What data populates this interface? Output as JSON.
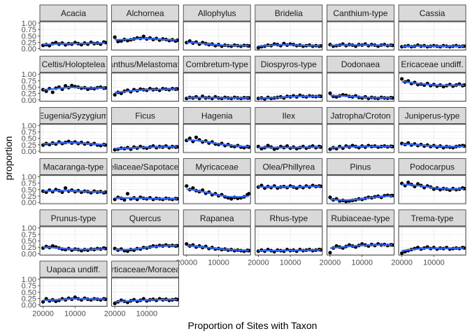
{
  "chart_data": {
    "type": "scatter",
    "facet_layout": "wrap",
    "ncol": 6,
    "xlabel": "Proportion of Sites with Taxon",
    "ylabel": "proportion",
    "x_reversed": true,
    "xlim": [
      21000,
      0
    ],
    "x_ticks": [
      20000,
      10000
    ],
    "x_tick_labels": [
      "20000",
      "10000"
    ],
    "ylim": [
      0,
      1
    ],
    "y_ticks": [
      0,
      0.25,
      0.5,
      0.75,
      1
    ],
    "y_tick_labels": [
      "0.00",
      "0.25",
      "0.50",
      "0.75",
      "1.00"
    ],
    "grid": true,
    "point_color": "#000000",
    "smooth_color": "#3366ff",
    "x": [
      20000,
      19000,
      18000,
      17000,
      16000,
      15000,
      14000,
      13000,
      12000,
      11000,
      10000,
      9000,
      8000,
      7000,
      6000,
      5000,
      4000,
      3000,
      2000,
      1000,
      500
    ],
    "panels": [
      {
        "name": "Acacia",
        "values": [
          0.13,
          0.16,
          0.12,
          0.2,
          0.24,
          0.18,
          0.22,
          0.15,
          0.2,
          0.18,
          0.24,
          0.2,
          0.16,
          0.22,
          0.18,
          0.25,
          0.2,
          0.22,
          0.18,
          0.26,
          0.24
        ]
      },
      {
        "name": "Alchornea",
        "values": [
          0.45,
          0.28,
          0.3,
          0.36,
          0.32,
          0.35,
          0.38,
          0.42,
          0.4,
          0.48,
          0.38,
          0.42,
          0.36,
          0.4,
          0.34,
          0.38,
          0.36,
          0.32,
          0.35,
          0.3,
          0.33
        ]
      },
      {
        "name": "Allophylus",
        "values": [
          0.24,
          0.3,
          0.22,
          0.26,
          0.18,
          0.24,
          0.2,
          0.16,
          0.18,
          0.12,
          0.16,
          0.1,
          0.14,
          0.12,
          0.1,
          0.14,
          0.12,
          0.1,
          0.13,
          0.12,
          0.11
        ]
      },
      {
        "name": "Bridelia",
        "values": [
          0.04,
          0.08,
          0.1,
          0.14,
          0.12,
          0.18,
          0.16,
          0.12,
          0.2,
          0.14,
          0.18,
          0.16,
          0.12,
          0.14,
          0.1,
          0.12,
          0.14,
          0.1,
          0.12,
          0.1,
          0.11
        ]
      },
      {
        "name": "Canthium-type",
        "values": [
          0.16,
          0.1,
          0.12,
          0.14,
          0.18,
          0.12,
          0.16,
          0.14,
          0.1,
          0.16,
          0.14,
          0.18,
          0.12,
          0.16,
          0.14,
          0.1,
          0.14,
          0.16,
          0.12,
          0.14,
          0.13
        ]
      },
      {
        "name": "Cassia",
        "values": [
          0.08,
          0.1,
          0.12,
          0.08,
          0.1,
          0.14,
          0.1,
          0.12,
          0.08,
          0.1,
          0.12,
          0.1,
          0.08,
          0.12,
          0.1,
          0.08,
          0.1,
          0.12,
          0.09,
          0.1,
          0.1
        ]
      },
      {
        "name": "Celtis/Holoptelea",
        "values": [
          0.4,
          0.34,
          0.44,
          0.3,
          0.46,
          0.5,
          0.42,
          0.55,
          0.48,
          0.56,
          0.52,
          0.5,
          0.46,
          0.48,
          0.42,
          0.46,
          0.44,
          0.48,
          0.5,
          0.46,
          0.47
        ]
      },
      {
        "name": "Cleistanthus/Melastomataceae",
        "values": [
          0.2,
          0.3,
          0.26,
          0.34,
          0.38,
          0.32,
          0.4,
          0.36,
          0.42,
          0.4,
          0.38,
          0.44,
          0.4,
          0.42,
          0.38,
          0.44,
          0.42,
          0.4,
          0.44,
          0.42,
          0.43
        ]
      },
      {
        "name": "Combretum-type",
        "values": [
          0.06,
          0.1,
          0.08,
          0.12,
          0.06,
          0.14,
          0.08,
          0.1,
          0.06,
          0.12,
          0.08,
          0.06,
          0.1,
          0.08,
          0.06,
          0.1,
          0.08,
          0.06,
          0.09,
          0.08,
          0.08
        ]
      },
      {
        "name": "Diospyros-type",
        "values": [
          0.06,
          0.08,
          0.04,
          0.1,
          0.06,
          0.08,
          0.1,
          0.12,
          0.08,
          0.14,
          0.12,
          0.16,
          0.12,
          0.18,
          0.14,
          0.12,
          0.16,
          0.14,
          0.13,
          0.15,
          0.14
        ]
      },
      {
        "name": "Dodonaea",
        "values": [
          0.26,
          0.14,
          0.12,
          0.16,
          0.2,
          0.18,
          0.14,
          0.12,
          0.16,
          0.1,
          0.08,
          0.12,
          0.06,
          0.1,
          0.08,
          0.06,
          0.1,
          0.08,
          0.07,
          0.09,
          0.08
        ]
      },
      {
        "name": "Ericaceae undiff.",
        "values": [
          0.82,
          0.7,
          0.74,
          0.64,
          0.68,
          0.6,
          0.62,
          0.58,
          0.64,
          0.56,
          0.6,
          0.54,
          0.58,
          0.52,
          0.56,
          0.6,
          0.54,
          0.58,
          0.62,
          0.56,
          0.58
        ]
      },
      {
        "name": "Eugenia/Syzygium",
        "values": [
          0.24,
          0.3,
          0.26,
          0.32,
          0.28,
          0.36,
          0.3,
          0.34,
          0.38,
          0.32,
          0.36,
          0.3,
          0.34,
          0.28,
          0.32,
          0.26,
          0.3,
          0.24,
          0.22,
          0.26,
          0.24
        ]
      },
      {
        "name": "Ficus",
        "values": [
          0.06,
          0.08,
          0.12,
          0.1,
          0.14,
          0.08,
          0.16,
          0.12,
          0.18,
          0.14,
          0.12,
          0.16,
          0.2,
          0.14,
          0.18,
          0.16,
          0.2,
          0.14,
          0.18,
          0.16,
          0.17
        ]
      },
      {
        "name": "Hagenia",
        "values": [
          0.42,
          0.5,
          0.38,
          0.54,
          0.44,
          0.36,
          0.4,
          0.32,
          0.36,
          0.28,
          0.26,
          0.3,
          0.22,
          0.26,
          0.2,
          0.18,
          0.22,
          0.16,
          0.14,
          0.18,
          0.16
        ]
      },
      {
        "name": "Ilex",
        "values": [
          0.18,
          0.1,
          0.14,
          0.22,
          0.16,
          0.08,
          0.12,
          0.18,
          0.14,
          0.2,
          0.12,
          0.16,
          0.1,
          0.14,
          0.18,
          0.12,
          0.16,
          0.2,
          0.14,
          0.18,
          0.16
        ]
      },
      {
        "name": "Jatropha/Croton",
        "values": [
          0.08,
          0.14,
          0.1,
          0.18,
          0.12,
          0.2,
          0.16,
          0.22,
          0.18,
          0.14,
          0.2,
          0.16,
          0.22,
          0.18,
          0.2,
          0.16,
          0.18,
          0.2,
          0.17,
          0.19,
          0.18
        ]
      },
      {
        "name": "Juniperus-type",
        "values": [
          0.3,
          0.26,
          0.32,
          0.24,
          0.28,
          0.22,
          0.26,
          0.2,
          0.24,
          0.18,
          0.22,
          0.16,
          0.2,
          0.14,
          0.18,
          0.16,
          0.14,
          0.18,
          0.2,
          0.22,
          0.2
        ]
      },
      {
        "name": "Macaranga-type",
        "values": [
          0.44,
          0.4,
          0.48,
          0.42,
          0.5,
          0.46,
          0.4,
          0.56,
          0.44,
          0.48,
          0.42,
          0.46,
          0.4,
          0.44,
          0.42,
          0.38,
          0.44,
          0.4,
          0.42,
          0.38,
          0.4
        ]
      },
      {
        "name": "Meliaceae/Sapotaceae",
        "values": [
          0.12,
          0.2,
          0.16,
          0.1,
          0.34,
          0.14,
          0.18,
          0.12,
          0.2,
          0.16,
          0.14,
          0.18,
          0.12,
          0.16,
          0.14,
          0.12,
          0.16,
          0.14,
          0.12,
          0.15,
          0.14
        ]
      },
      {
        "name": "Myricaceae",
        "values": [
          0.64,
          0.5,
          0.56,
          0.46,
          0.42,
          0.48,
          0.36,
          0.4,
          0.3,
          0.34,
          0.26,
          0.3,
          0.22,
          0.18,
          0.14,
          0.2,
          0.16,
          0.18,
          0.22,
          0.3,
          0.34
        ]
      },
      {
        "name": "Olea/Phillyrea",
        "values": [
          0.6,
          0.66,
          0.56,
          0.62,
          0.58,
          0.64,
          0.56,
          0.6,
          0.62,
          0.58,
          0.64,
          0.6,
          0.56,
          0.62,
          0.58,
          0.64,
          0.6,
          0.66,
          0.62,
          0.64,
          0.63
        ]
      },
      {
        "name": "Pinus",
        "values": [
          0.2,
          0.1,
          0.14,
          0.06,
          0.08,
          0.04,
          0.06,
          0.08,
          0.1,
          0.14,
          0.12,
          0.16,
          0.2,
          0.18,
          0.22,
          0.24,
          0.2,
          0.26,
          0.28,
          0.26,
          0.27
        ]
      },
      {
        "name": "Podocarpus",
        "values": [
          0.74,
          0.66,
          0.78,
          0.7,
          0.62,
          0.72,
          0.66,
          0.58,
          0.64,
          0.6,
          0.52,
          0.56,
          0.5,
          0.54,
          0.52,
          0.48,
          0.54,
          0.5,
          0.52,
          0.56,
          0.54
        ]
      },
      {
        "name": "Prunus-type",
        "values": [
          0.22,
          0.28,
          0.24,
          0.3,
          0.26,
          0.22,
          0.18,
          0.16,
          0.2,
          0.14,
          0.18,
          0.16,
          0.12,
          0.16,
          0.14,
          0.18,
          0.16,
          0.2,
          0.18,
          0.22,
          0.2
        ]
      },
      {
        "name": "Quercus",
        "values": [
          0.2,
          0.14,
          0.18,
          0.12,
          0.1,
          0.16,
          0.14,
          0.2,
          0.18,
          0.24,
          0.22,
          0.26,
          0.3,
          0.28,
          0.32,
          0.3,
          0.34,
          0.3,
          0.32,
          0.3,
          0.31
        ]
      },
      {
        "name": "Rapanea",
        "values": [
          0.38,
          0.3,
          0.34,
          0.26,
          0.3,
          0.24,
          0.28,
          0.2,
          0.24,
          0.18,
          0.2,
          0.16,
          0.18,
          0.14,
          0.16,
          0.12,
          0.14,
          0.12,
          0.1,
          0.13,
          0.12
        ]
      },
      {
        "name": "Rhus-type",
        "values": [
          0.1,
          0.14,
          0.1,
          0.16,
          0.12,
          0.08,
          0.14,
          0.12,
          0.1,
          0.16,
          0.12,
          0.14,
          0.1,
          0.16,
          0.12,
          0.14,
          0.16,
          0.12,
          0.14,
          0.16,
          0.15
        ]
      },
      {
        "name": "Rubiaceae-type",
        "values": [
          0.04,
          0.22,
          0.3,
          0.26,
          0.22,
          0.28,
          0.34,
          0.3,
          0.26,
          0.32,
          0.38,
          0.34,
          0.3,
          0.36,
          0.32,
          0.38,
          0.34,
          0.36,
          0.32,
          0.35,
          0.34
        ]
      },
      {
        "name": "Trema-type",
        "values": [
          0.02,
          0.08,
          0.12,
          0.16,
          0.2,
          0.24,
          0.18,
          0.22,
          0.26,
          0.2,
          0.24,
          0.18,
          0.22,
          0.2,
          0.24,
          0.18,
          0.2,
          0.22,
          0.2,
          0.24,
          0.22
        ]
      },
      {
        "name": "Uapaca undiff.",
        "values": [
          0.12,
          0.24,
          0.16,
          0.2,
          0.14,
          0.18,
          0.24,
          0.2,
          0.26,
          0.22,
          0.3,
          0.24,
          0.2,
          0.26,
          0.22,
          0.2,
          0.24,
          0.22,
          0.2,
          0.24,
          0.22
        ]
      },
      {
        "name": "Urticaceae/Moraceae",
        "values": [
          0.06,
          0.12,
          0.18,
          0.14,
          0.1,
          0.16,
          0.2,
          0.14,
          0.18,
          0.24,
          0.16,
          0.2,
          0.22,
          0.18,
          0.24,
          0.2,
          0.22,
          0.18,
          0.2,
          0.22,
          0.21
        ]
      }
    ]
  }
}
